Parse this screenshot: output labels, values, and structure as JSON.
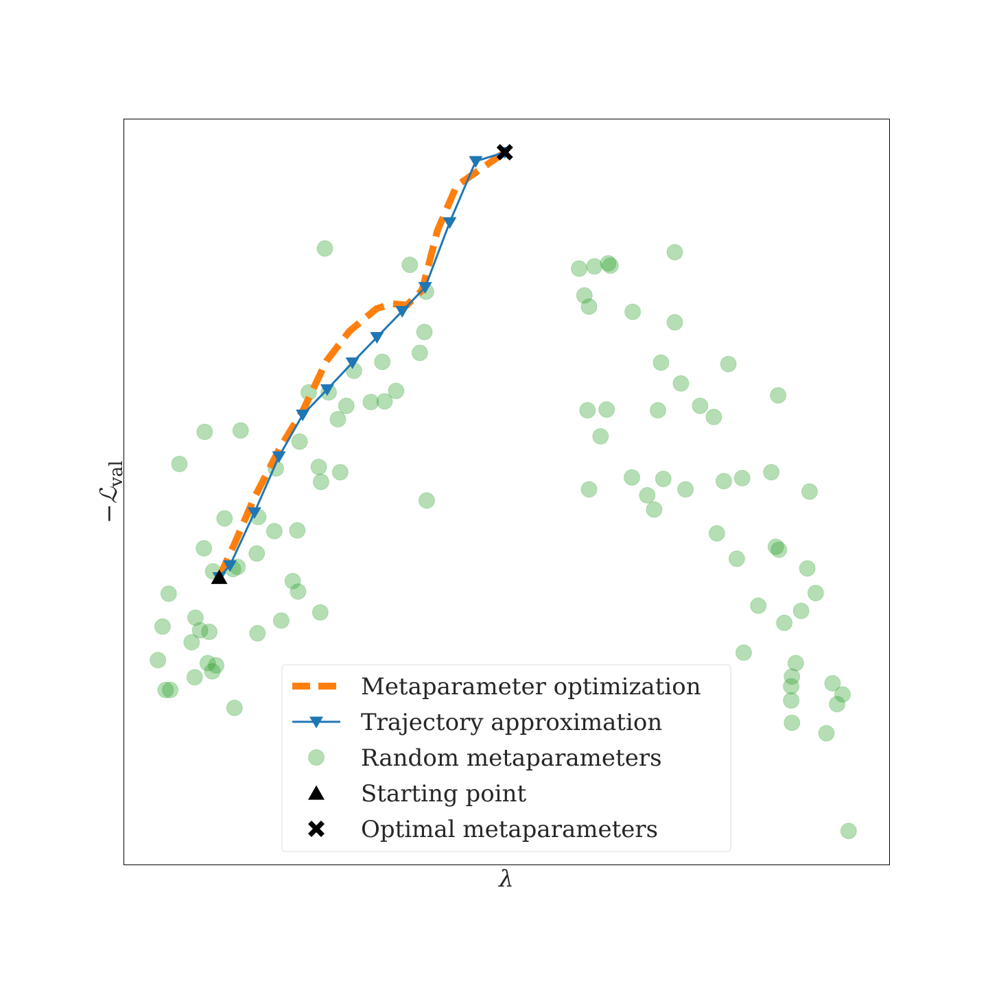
{
  "chart_data": {
    "type": "scatter",
    "title": "",
    "xlabel": "λ",
    "ylabel": "−ℒ",
    "ylabel_subscript": "val",
    "xlim": [
      0,
      100
    ],
    "ylim": [
      0,
      100
    ],
    "ticks": "none",
    "grid": false,
    "legend_position": "lower-center",
    "colors": {
      "metaopt": "#ff7f0e",
      "trajectory": "#1f77b4",
      "random": "#2ca02c",
      "markers": "#000000"
    },
    "series": [
      {
        "name": "Metaparameter optimization",
        "kind": "dashed-line",
        "points": [
          [
            12.5,
            38.5
          ],
          [
            14.5,
            43
          ],
          [
            17,
            49
          ],
          [
            20.5,
            56
          ],
          [
            23.5,
            61
          ],
          [
            26.5,
            67.5
          ],
          [
            29.5,
            71.5
          ],
          [
            33,
            74.5
          ],
          [
            35,
            75.2
          ],
          [
            37,
            75
          ],
          [
            39,
            77
          ],
          [
            41,
            85
          ],
          [
            43.5,
            91
          ],
          [
            47,
            93.5
          ],
          [
            49.8,
            95.5
          ]
        ]
      },
      {
        "name": "Trajectory approximation",
        "kind": "line-triangle-down",
        "points": [
          [
            12.5,
            38.5
          ],
          [
            13.9,
            40.1
          ],
          [
            17.1,
            47.2
          ],
          [
            20.3,
            54.7
          ],
          [
            23.4,
            60.3
          ],
          [
            26.6,
            63.7
          ],
          [
            29.9,
            67.3
          ],
          [
            33.1,
            70.7
          ],
          [
            36.4,
            74.2
          ],
          [
            39.4,
            77.4
          ],
          [
            42.6,
            86.1
          ],
          [
            46,
            94.3
          ],
          [
            49.8,
            95.5
          ]
        ]
      },
      {
        "name": "Random metaparameters",
        "kind": "scatter",
        "points": [
          [
            26.3,
            82.6
          ],
          [
            37.4,
            80.4
          ],
          [
            39.5,
            76.8
          ],
          [
            39.3,
            71.4
          ],
          [
            38.7,
            68.6
          ],
          [
            33.8,
            67.4
          ],
          [
            30.1,
            66.2
          ],
          [
            24.2,
            63.3
          ],
          [
            26.8,
            63.3
          ],
          [
            29.1,
            61.5
          ],
          [
            35.6,
            63.5
          ],
          [
            34.1,
            62.1
          ],
          [
            32.3,
            62.0
          ],
          [
            28.0,
            59.7
          ],
          [
            15.3,
            58.2
          ],
          [
            10.6,
            58.0
          ],
          [
            23.0,
            56.7
          ],
          [
            25.5,
            53.3
          ],
          [
            7.3,
            53.7
          ],
          [
            19.9,
            53.1
          ],
          [
            28.3,
            52.6
          ],
          [
            39.6,
            48.8
          ],
          [
            25.8,
            51.3
          ],
          [
            13.2,
            46.4
          ],
          [
            17.6,
            46.6
          ],
          [
            19.7,
            44.7
          ],
          [
            22.7,
            44.8
          ],
          [
            10.5,
            42.4
          ],
          [
            17.4,
            41.7
          ],
          [
            14.9,
            39.9
          ],
          [
            11.7,
            39.3
          ],
          [
            14.3,
            39.6
          ],
          [
            22.1,
            38.0
          ],
          [
            22.8,
            36.6
          ],
          [
            5.9,
            36.3
          ],
          [
            25.7,
            33.8
          ],
          [
            20.6,
            32.7
          ],
          [
            9.4,
            33.1
          ],
          [
            5.1,
            31.9
          ],
          [
            10.0,
            31.4
          ],
          [
            11.2,
            31.2
          ],
          [
            17.5,
            31.0
          ],
          [
            8.9,
            29.8
          ],
          [
            11.0,
            27.0
          ],
          [
            4.5,
            27.4
          ],
          [
            12.1,
            26.7
          ],
          [
            9.3,
            25.1
          ],
          [
            11.6,
            25.9
          ],
          [
            5.5,
            23.4
          ],
          [
            6.1,
            23.4
          ],
          [
            14.5,
            21.0
          ],
          [
            72.0,
            82.1
          ],
          [
            59.5,
            79.9
          ],
          [
            61.5,
            80.2
          ],
          [
            63.3,
            80.6
          ],
          [
            63.6,
            80.3
          ],
          [
            60.2,
            76.3
          ],
          [
            60.8,
            74.8
          ],
          [
            66.5,
            74.1
          ],
          [
            72.0,
            72.7
          ],
          [
            70.2,
            67.3
          ],
          [
            79.0,
            67.1
          ],
          [
            72.8,
            64.5
          ],
          [
            85.5,
            62.9
          ],
          [
            60.6,
            60.9
          ],
          [
            63.1,
            61.0
          ],
          [
            69.8,
            60.9
          ],
          [
            75.3,
            61.5
          ],
          [
            77.1,
            60.0
          ],
          [
            62.3,
            57.4
          ],
          [
            66.4,
            51.9
          ],
          [
            70.5,
            51.7
          ],
          [
            73.4,
            50.3
          ],
          [
            80.8,
            51.8
          ],
          [
            68.4,
            49.5
          ],
          [
            69.3,
            47.6
          ],
          [
            78.4,
            51.4
          ],
          [
            84.6,
            52.6
          ],
          [
            60.8,
            50.3
          ],
          [
            89.6,
            50.0
          ],
          [
            77.5,
            44.4
          ],
          [
            80.1,
            41.0
          ],
          [
            85.2,
            42.6
          ],
          [
            85.6,
            42.2
          ],
          [
            89.3,
            39.7
          ],
          [
            90.4,
            36.4
          ],
          [
            88.5,
            34.0
          ],
          [
            86.3,
            32.4
          ],
          [
            82.9,
            34.7
          ],
          [
            81.0,
            28.4
          ],
          [
            87.8,
            27.0
          ],
          [
            87.3,
            25.2
          ],
          [
            87.2,
            23.9
          ],
          [
            87.2,
            22.0
          ],
          [
            92.6,
            24.3
          ],
          [
            93.9,
            22.8
          ],
          [
            93.2,
            21.5
          ],
          [
            87.3,
            19.0
          ],
          [
            91.8,
            17.6
          ],
          [
            94.7,
            4.5
          ]
        ]
      },
      {
        "name": "Starting point",
        "kind": "triangle-up",
        "points": [
          [
            12.5,
            38.5
          ]
        ]
      },
      {
        "name": "Optimal metaparameters",
        "kind": "x-marker",
        "points": [
          [
            49.8,
            95.5
          ]
        ]
      }
    ]
  }
}
